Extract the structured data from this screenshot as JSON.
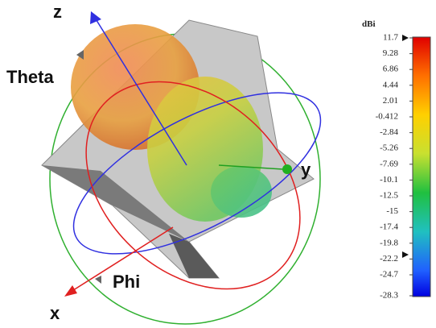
{
  "axes": {
    "z": "z",
    "y": "y",
    "x": "x",
    "theta": "Theta",
    "phi": "Phi"
  },
  "colorbar": {
    "unit": "dBi",
    "ticks": [
      "11.7",
      "9.28",
      "6.86",
      "4.44",
      "2.01",
      "-0.412",
      "-2.84",
      "-5.26",
      "-7.69",
      "-10.1",
      "-12.5",
      "-15",
      "-17.4",
      "-19.8",
      "-22.2",
      "-24.7",
      "-28.3"
    ]
  }
}
